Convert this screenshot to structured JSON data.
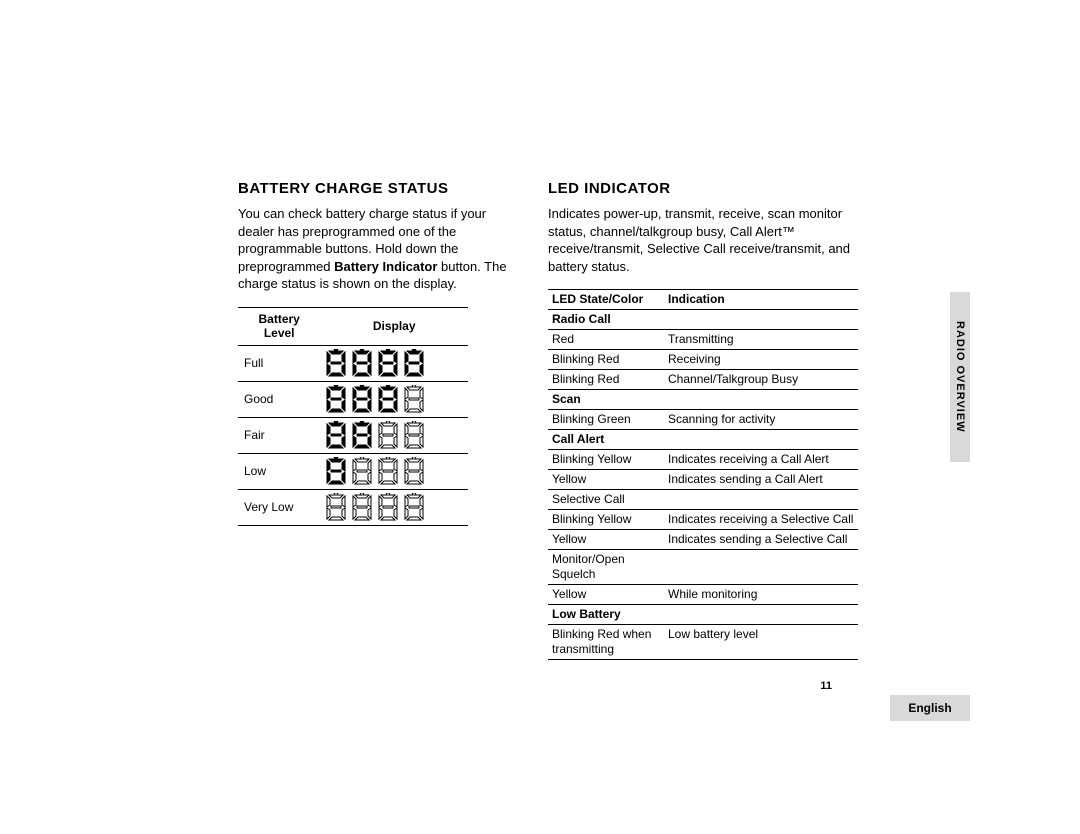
{
  "battery": {
    "heading": "BATTERY CHARGE STATUS",
    "intro_pre": "You can check battery charge status if your dealer has preprogrammed one of the programmable buttons. Hold down the preprogrammed ",
    "intro_bold": "Battery Indicator",
    "intro_post": " button. The charge status is shown on the display.",
    "col1_line1": "Battery",
    "col1_line2": "Level",
    "col2": "Display",
    "rows": [
      {
        "level": "Full",
        "filled": 4
      },
      {
        "level": "Good",
        "filled": 3
      },
      {
        "level": "Fair",
        "filled": 2
      },
      {
        "level": "Low",
        "filled": 1
      },
      {
        "level": "Very Low",
        "filled": 0
      }
    ]
  },
  "led": {
    "heading": "LED INDICATOR",
    "intro": "Indicates power-up, transmit, receive, scan monitor status, channel/talkgroup busy, Call Alert™ receive/transmit, Selective Call receive/transmit, and battery status.",
    "header1": "LED State/Color",
    "header2": "Indication",
    "table": [
      {
        "type": "section",
        "label": "Radio Call"
      },
      {
        "type": "row",
        "c1": "Red",
        "c2": "Transmitting"
      },
      {
        "type": "row",
        "c1": "Blinking Red",
        "c2": "Receiving"
      },
      {
        "type": "row",
        "c1": "Blinking Red",
        "c2": "Channel/Talkgroup Busy"
      },
      {
        "type": "section",
        "label": "Scan"
      },
      {
        "type": "row",
        "c1": "Blinking Green",
        "c2": "Scanning for activity"
      },
      {
        "type": "section",
        "label": "Call Alert"
      },
      {
        "type": "row",
        "c1": "Blinking Yellow",
        "c2": "Indicates receiving a Call Alert"
      },
      {
        "type": "row",
        "c1": "Yellow",
        "c2": "Indicates sending a Call Alert"
      },
      {
        "type": "row",
        "c1": "Selective Call",
        "c2": ""
      },
      {
        "type": "row",
        "c1": "Blinking Yellow",
        "c2": "Indicates receiving a Selective Call"
      },
      {
        "type": "row",
        "c1": "Yellow",
        "c2": "Indicates sending a Selective Call"
      },
      {
        "type": "row",
        "c1": "Monitor/Open Squelch",
        "c2": ""
      },
      {
        "type": "row",
        "c1": "Yellow",
        "c2": "While monitoring"
      },
      {
        "type": "section",
        "label": "Low Battery"
      },
      {
        "type": "row",
        "c1": "Blinking Red when transmitting",
        "c2": "Low battery level"
      }
    ]
  },
  "side_tab": "RADIO OVERVIEW",
  "page_number": "11",
  "language": "English",
  "style": {
    "seg_filled_fill": "#000000",
    "seg_empty_fill": "#ffffff",
    "seg_stroke": "#000000",
    "tab_bg": "#d9d9d9"
  }
}
